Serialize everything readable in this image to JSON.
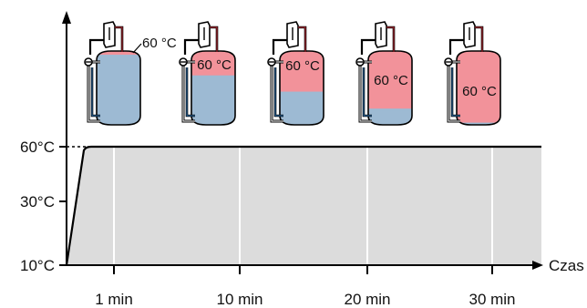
{
  "chart_data": {
    "type": "area",
    "title": "",
    "xlabel": "Czas",
    "ylabel": "",
    "y_ticks": [
      {
        "value": 60,
        "label": "60°C"
      },
      {
        "value": 30,
        "label": "30°C"
      },
      {
        "value": 10,
        "label": "10°C"
      }
    ],
    "x_ticks": [
      {
        "value": 1,
        "label": "1 min"
      },
      {
        "value": 10,
        "label": "10 min"
      },
      {
        "value": 20,
        "label": "20 min"
      },
      {
        "value": 30,
        "label": "30 min"
      }
    ],
    "series": [
      {
        "points": [
          {
            "x": 0,
            "y": 10
          },
          {
            "x": 0.5,
            "y": 58
          },
          {
            "x": 0.7,
            "y": 60
          },
          {
            "x": 40,
            "y": 60
          }
        ]
      }
    ],
    "annotations": [
      {
        "label": "60 °C",
        "hot_fraction": 0.05
      },
      {
        "label": "60 °C",
        "hot_fraction": 0.33
      },
      {
        "label": "60 °C",
        "hot_fraction": 0.55
      },
      {
        "label": "60 °C",
        "hot_fraction": 0.78
      },
      {
        "label": "60 °C",
        "hot_fraction": 0.97
      }
    ],
    "grid": true,
    "legend": "none",
    "colors": {
      "hot_water": "#f2929a",
      "cold_water": "#9dbad3",
      "area_fill": "#dcdcdc",
      "grid": "#ffffff",
      "axis": "#000000",
      "pipe_red": "#c7303a",
      "pipe_blue": "#2e74b5"
    }
  }
}
